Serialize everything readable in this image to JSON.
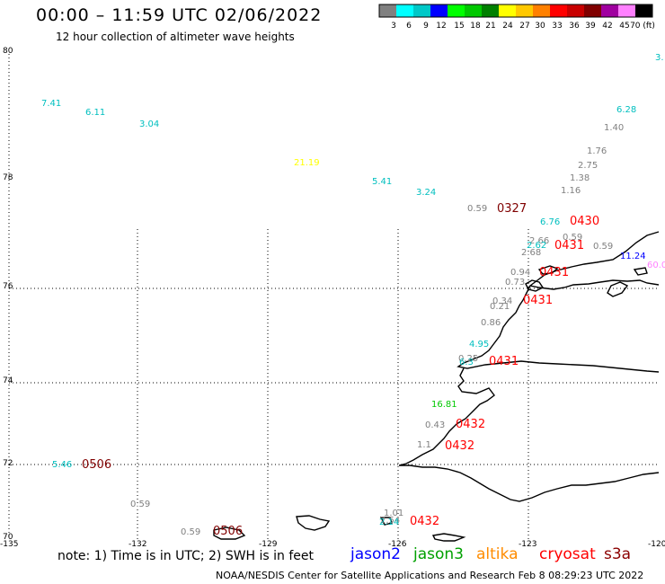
{
  "header": {
    "title": "00:00 – 11:59 UTC 02/06/2022",
    "subtitle": "12 hour collection of altimeter wave heights"
  },
  "colorbar": {
    "labels": [
      "3",
      "6",
      "9",
      "12",
      "15",
      "18",
      "21",
      "24",
      "27",
      "30",
      "33",
      "36",
      "39",
      "42",
      "45",
      "70 (ft)"
    ],
    "colors": [
      "#808080",
      "#00ffff",
      "#00c8c8",
      "#0000ff",
      "#00ff00",
      "#00c800",
      "#008000",
      "#ffff00",
      "#ffc800",
      "#ff8000",
      "#ff0000",
      "#c80000",
      "#800000",
      "#a000a0",
      "#ff80ff",
      "#000000"
    ]
  },
  "map": {
    "ylabels": [
      {
        "text": "80"
      },
      {
        "text": "78"
      },
      {
        "text": "76"
      },
      {
        "text": "74"
      },
      {
        "text": "72"
      },
      {
        "text": "70"
      }
    ],
    "xlabels": [
      {
        "text": "-135"
      },
      {
        "text": "-132"
      },
      {
        "text": "-129"
      },
      {
        "text": "-126"
      },
      {
        "text": "-123"
      },
      {
        "text": "-120"
      }
    ],
    "observations": [
      {
        "text": "7.41",
        "color": "#00bfbf"
      },
      {
        "text": "6.11",
        "color": "#00bfbf"
      },
      {
        "text": "3.04",
        "color": "#00bfbf"
      },
      {
        "text": "21.19",
        "color": "#ffff00"
      },
      {
        "text": "5.41",
        "color": "#00bfbf"
      },
      {
        "text": "3.24",
        "color": "#00bfbf"
      },
      {
        "text": "0.59",
        "color": "#808080"
      },
      {
        "text": "0327",
        "color": "#800000"
      },
      {
        "text": "3.",
        "color": "#00bfbf"
      },
      {
        "text": "6.28",
        "color": "#00bfbf"
      },
      {
        "text": "1.40",
        "color": "#808080"
      },
      {
        "text": "1.76",
        "color": "#808080"
      },
      {
        "text": "2.75",
        "color": "#808080"
      },
      {
        "text": "1.38",
        "color": "#808080"
      },
      {
        "text": "1.16",
        "color": "#808080"
      },
      {
        "text": "6.76",
        "color": "#00bfbf"
      },
      {
        "text": "0430",
        "color": "#ff0000"
      },
      {
        "text": "0.59",
        "color": "#808080"
      },
      {
        "text": "2.66",
        "color": "#808080"
      },
      {
        "text": "2.62",
        "color": "#00bfbf"
      },
      {
        "text": "0431",
        "color": "#ff0000"
      },
      {
        "text": "2.68",
        "color": "#808080"
      },
      {
        "text": "0.59",
        "color": "#808080"
      },
      {
        "text": "11.24",
        "color": "#0000ff"
      },
      {
        "text": "60.0",
        "color": "#ff80ff"
      },
      {
        "text": "0.94",
        "color": "#808080"
      },
      {
        "text": "0431",
        "color": "#ff0000"
      },
      {
        "text": "0.73",
        "color": "#808080"
      },
      {
        "text": "0.34",
        "color": "#808080"
      },
      {
        "text": "0431",
        "color": "#ff0000"
      },
      {
        "text": "0.21",
        "color": "#808080"
      },
      {
        "text": "0.86",
        "color": "#808080"
      },
      {
        "text": "4.95",
        "color": "#00bfbf"
      },
      {
        "text": "0.25",
        "color": "#808080"
      },
      {
        "text": "6.3",
        "color": "#00bfbf"
      },
      {
        "text": "0431",
        "color": "#ff0000"
      },
      {
        "text": "16.81",
        "color": "#00c800"
      },
      {
        "text": "0.43",
        "color": "#808080"
      },
      {
        "text": "0432",
        "color": "#ff0000"
      },
      {
        "text": "1.1",
        "color": "#808080"
      },
      {
        "text": "0432",
        "color": "#ff0000"
      },
      {
        "text": "5.46",
        "color": "#00bfbf"
      },
      {
        "text": "0506",
        "color": "#800000"
      },
      {
        "text": "0.59",
        "color": "#808080"
      },
      {
        "text": "0.59",
        "color": "#808080"
      },
      {
        "text": "0506",
        "color": "#800000"
      },
      {
        "text": "1.01",
        "color": "#808080"
      },
      {
        "text": "2.54",
        "color": "#808080"
      },
      {
        "text": "2.14",
        "color": "#00bfbf"
      },
      {
        "text": "0432",
        "color": "#ff0000"
      }
    ]
  },
  "footer": {
    "note": "note: 1) Time is in UTC; 2) SWH is in feet",
    "satellites": [
      {
        "text": "jason2",
        "color": "#0000ff"
      },
      {
        "text": "jason3",
        "color": "#00a000"
      },
      {
        "text": "altika",
        "color": "#ff8c00"
      },
      {
        "text": "cryosat",
        "color": "#ff0000"
      },
      {
        "text": "s3a",
        "color": "#8b0000"
      }
    ],
    "credit": "NOAA/NESDIS Center for Satellite Applications and Research   Feb  8 08:29:23 UTC 2022"
  }
}
